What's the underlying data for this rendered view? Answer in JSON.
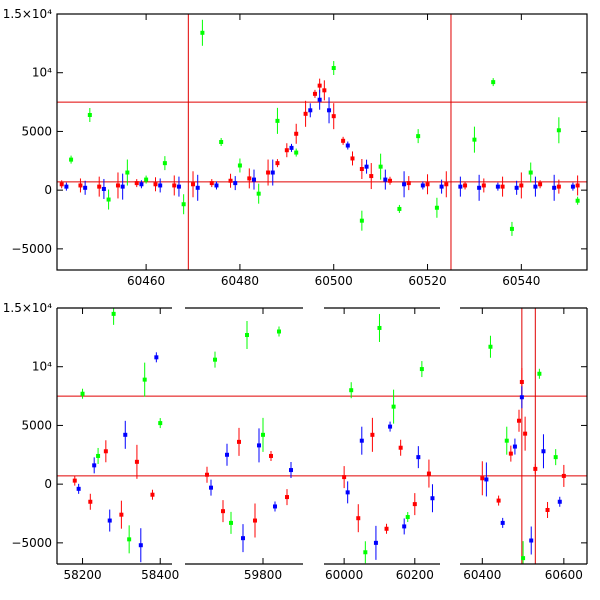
{
  "figure": {
    "top_panel": {
      "xticks": [
        "60460",
        "60480",
        "60500",
        "60520",
        "60540"
      ],
      "yticks": [
        "1.5×10⁴",
        "10⁴",
        "5000",
        "0",
        "−5000"
      ]
    },
    "bottom_panel": {
      "xticks": [
        "58200",
        "58400",
        "59800",
        "60000",
        "60200",
        "60400",
        "60600"
      ],
      "yticks": [
        "1.5×10⁴",
        "10⁴",
        "5000",
        "0",
        "−5000"
      ]
    }
  },
  "chart_data": [
    {
      "type": "scatter",
      "title": "",
      "xlabel": "",
      "ylabel": "",
      "xlim": [
        60441,
        60554
      ],
      "ylim": [
        -6800,
        15000
      ],
      "reference_lines": {
        "horizontal": [
          7500,
          700
        ],
        "vertical": [
          60469,
          60525
        ]
      },
      "colors": {
        "red": "#ff0000",
        "blue": "#0000ff",
        "green": "#00ff00"
      },
      "series": [
        {
          "color": "red",
          "x": [
            60442,
            60446,
            60450,
            60454,
            60458,
            60462,
            60466,
            60470,
            60474,
            60478,
            60482,
            60486,
            60488,
            60490,
            60492,
            60494,
            60496,
            60497,
            60498,
            60500,
            60502,
            60504,
            60506,
            60508,
            60512,
            60516,
            60520,
            60524,
            60528,
            60532,
            60536,
            60540,
            60544,
            60548,
            60552
          ],
          "y": [
            500,
            400,
            300,
            400,
            600,
            500,
            400,
            500,
            600,
            800,
            1000,
            1500,
            2300,
            3400,
            4800,
            6500,
            8200,
            8900,
            8500,
            6300,
            4200,
            2700,
            1800,
            1200,
            800,
            600,
            500,
            500,
            400,
            400,
            300,
            400,
            500,
            300,
            400
          ]
        },
        {
          "color": "blue",
          "x": [
            60443,
            60447,
            60451,
            60455,
            60459,
            60463,
            60467,
            60471,
            60475,
            60479,
            60483,
            60487,
            60491,
            60495,
            60497,
            60499,
            60503,
            60507,
            60511,
            60515,
            60519,
            60523,
            60527,
            60531,
            60535,
            60539,
            60543,
            60547,
            60551
          ],
          "y": [
            300,
            200,
            100,
            300,
            500,
            400,
            300,
            200,
            400,
            600,
            900,
            1500,
            3600,
            6800,
            7700,
            6800,
            3800,
            2000,
            900,
            500,
            400,
            300,
            300,
            200,
            300,
            200,
            300,
            200,
            300
          ]
        },
        {
          "color": "green",
          "x": [
            60444,
            60448,
            60452,
            60456,
            60460,
            60464,
            60468,
            60472,
            60476,
            60480,
            60484,
            60488,
            60492,
            60500,
            60506,
            60510,
            60514,
            60518,
            60522,
            60530,
            60534,
            60538,
            60542,
            60548,
            60552
          ],
          "y": [
            2600,
            6400,
            -800,
            1500,
            900,
            2300,
            -1200,
            13400,
            4100,
            2100,
            -300,
            5900,
            3200,
            10400,
            -2600,
            2000,
            -1600,
            4600,
            -1500,
            4300,
            9200,
            -3300,
            1500,
            5100,
            -900
          ]
        }
      ]
    },
    {
      "type": "scatter",
      "title": "",
      "xlabel": "",
      "ylabel": "",
      "x_segments": [
        [
          58160,
          58420
        ],
        [
          59620,
          59890
        ],
        [
          59960,
          60260
        ],
        [
          60360,
          60620
        ]
      ],
      "ylim": [
        -6800,
        15000
      ],
      "reference_lines": {
        "horizontal": [
          7500,
          700
        ],
        "vertical": [
          60497,
          60530
        ]
      },
      "colors": {
        "red": "#ff0000",
        "blue": "#0000ff",
        "green": "#00ff00"
      },
      "series": [
        {
          "color": "red",
          "x": [
            58180,
            58220,
            58260,
            58300,
            58340,
            58380,
            59660,
            59700,
            59740,
            59780,
            59820,
            59860,
            60000,
            60040,
            60080,
            60120,
            60160,
            60200,
            60240,
            60400,
            60440,
            60470,
            60490,
            60497,
            60505,
            60530,
            60560,
            60600
          ],
          "y": [
            300,
            -1500,
            2800,
            -2600,
            1900,
            -900,
            800,
            -2300,
            3600,
            -3100,
            2400,
            -1100,
            600,
            -2900,
            4200,
            -3800,
            3100,
            -1700,
            900,
            500,
            -1400,
            2600,
            5400,
            8700,
            4300,
            1300,
            -2200,
            700
          ]
        },
        {
          "color": "blue",
          "x": [
            58190,
            58230,
            58270,
            58310,
            58350,
            58390,
            59670,
            59710,
            59750,
            59790,
            59830,
            59870,
            60010,
            60050,
            60090,
            60130,
            60170,
            60210,
            60250,
            60410,
            60450,
            60480,
            60497,
            60520,
            60550,
            60590
          ],
          "y": [
            -400,
            1600,
            -3100,
            4200,
            -5200,
            10800,
            -300,
            2500,
            -4600,
            3300,
            -1900,
            1200,
            -700,
            3700,
            -5000,
            4900,
            -3600,
            2300,
            -1200,
            400,
            -3300,
            3200,
            7400,
            -4800,
            2800,
            -1500
          ]
        },
        {
          "color": "green",
          "x": [
            58200,
            58240,
            58280,
            58320,
            58360,
            58400,
            59680,
            59720,
            59760,
            59800,
            59840,
            60020,
            60060,
            60100,
            60140,
            60180,
            60220,
            60420,
            60460,
            60500,
            60540,
            60580
          ],
          "y": [
            7700,
            2400,
            14500,
            -4700,
            8900,
            5200,
            10600,
            -3300,
            12700,
            4200,
            13000,
            8000,
            -5800,
            13300,
            6600,
            -2800,
            9800,
            11700,
            3700,
            -6300,
            9400,
            2300
          ]
        }
      ]
    }
  ]
}
